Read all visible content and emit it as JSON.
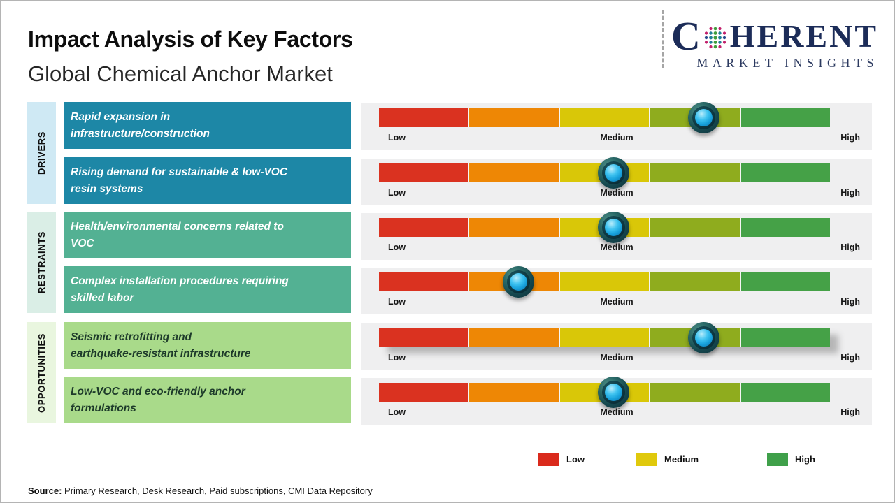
{
  "header": {
    "title": "Impact Analysis of Key Factors",
    "subtitle": "Global Chemical Anchor Market"
  },
  "logo": {
    "brand_c": "C",
    "brand_rest": "HERENT",
    "tagline": "MARKET INSIGHTS",
    "navy": "#1c2c58",
    "globe_dot_colors": {
      "magenta": "#c2206b",
      "teal": "#1f7f96",
      "green": "#3f9d3c",
      "blue": "#274a8d"
    }
  },
  "groups": [
    {
      "label": "DRIVERS",
      "strip_color": "#cfe9f4",
      "box_color": "#1d87a6"
    },
    {
      "label": "RESTRAINTS",
      "strip_color": "#daeee6",
      "box_color": "#53b193"
    },
    {
      "label": "OPPORTUNITIES",
      "strip_color": "#e9f6df",
      "box_color": "#a9da8a"
    }
  ],
  "rows": [
    {
      "group": "drivers",
      "text": "Rapid expansion in\ninfrastructure/construction",
      "impact_position": 0.72,
      "impact_label": "Medium-High"
    },
    {
      "group": "drivers",
      "text": "Rising demand for sustainable & low-VOC\nresin systems",
      "impact_position": 0.52,
      "impact_label": "Medium"
    },
    {
      "group": "restraints",
      "text": "Health/environmental concerns related to\nVOC",
      "impact_position": 0.52,
      "impact_label": "Medium"
    },
    {
      "group": "restraints",
      "text": "Complex installation procedures requiring\nskilled labor",
      "impact_position": 0.31,
      "impact_label": "Low-Medium"
    },
    {
      "group": "opportunities",
      "text": "Seismic retrofitting and\nearthquake-resistant infrastructure",
      "impact_position": 0.72,
      "impact_label": "Medium-High"
    },
    {
      "group": "opportunities",
      "text": "Low-VOC and eco-friendly anchor\nformulations",
      "impact_position": 0.52,
      "impact_label": "Medium"
    }
  ],
  "scale": {
    "low": "Low",
    "medium": "Medium",
    "high": "High",
    "segment_colors": [
      "#da3220",
      "#ee8705",
      "#d9c708",
      "#8fac1e",
      "#45a147"
    ]
  },
  "box_colors": {
    "drivers": "#1d87a6",
    "restraints": "#53b193",
    "opportunities": "#a9da8a"
  },
  "legend": [
    {
      "label": "Low",
      "color": "#da2a1c"
    },
    {
      "label": "Medium",
      "color": "#e0c90c"
    },
    {
      "label": "High",
      "color": "#3fa04a"
    }
  ],
  "source": {
    "prefix": "Source:",
    "text": " Primary Research, Desk Research, Paid subscriptions, CMI Data Repository"
  },
  "chart_data": {
    "type": "bar",
    "title": "Impact Analysis of Key Factors",
    "subtitle": "Global Chemical Anchor Market",
    "x_scale": {
      "labels": [
        "Low",
        "Medium",
        "High"
      ],
      "range": [
        0,
        1
      ],
      "segments": 5
    },
    "series": [
      {
        "group": "Drivers",
        "factor": "Rapid expansion in infrastructure/construction",
        "impact_position": 0.72,
        "impact_label": "Medium-High"
      },
      {
        "group": "Drivers",
        "factor": "Rising demand for sustainable & low-VOC resin systems",
        "impact_position": 0.52,
        "impact_label": "Medium"
      },
      {
        "group": "Restraints",
        "factor": "Health/environmental concerns related to VOC",
        "impact_position": 0.52,
        "impact_label": "Medium"
      },
      {
        "group": "Restraints",
        "factor": "Complex installation procedures requiring skilled labor",
        "impact_position": 0.31,
        "impact_label": "Low-Medium"
      },
      {
        "group": "Opportunities",
        "factor": "Seismic retrofitting and earthquake-resistant infrastructure",
        "impact_position": 0.72,
        "impact_label": "Medium-High"
      },
      {
        "group": "Opportunities",
        "factor": "Low-VOC and eco-friendly anchor formulations",
        "impact_position": 0.52,
        "impact_label": "Medium"
      }
    ],
    "legend_position": "bottom",
    "legend": [
      {
        "label": "Low",
        "color": "#da2a1c"
      },
      {
        "label": "Medium",
        "color": "#e0c90c"
      },
      {
        "label": "High",
        "color": "#3fa04a"
      }
    ],
    "source": "Primary Research, Desk Research, Paid subscriptions, CMI Data Repository"
  }
}
